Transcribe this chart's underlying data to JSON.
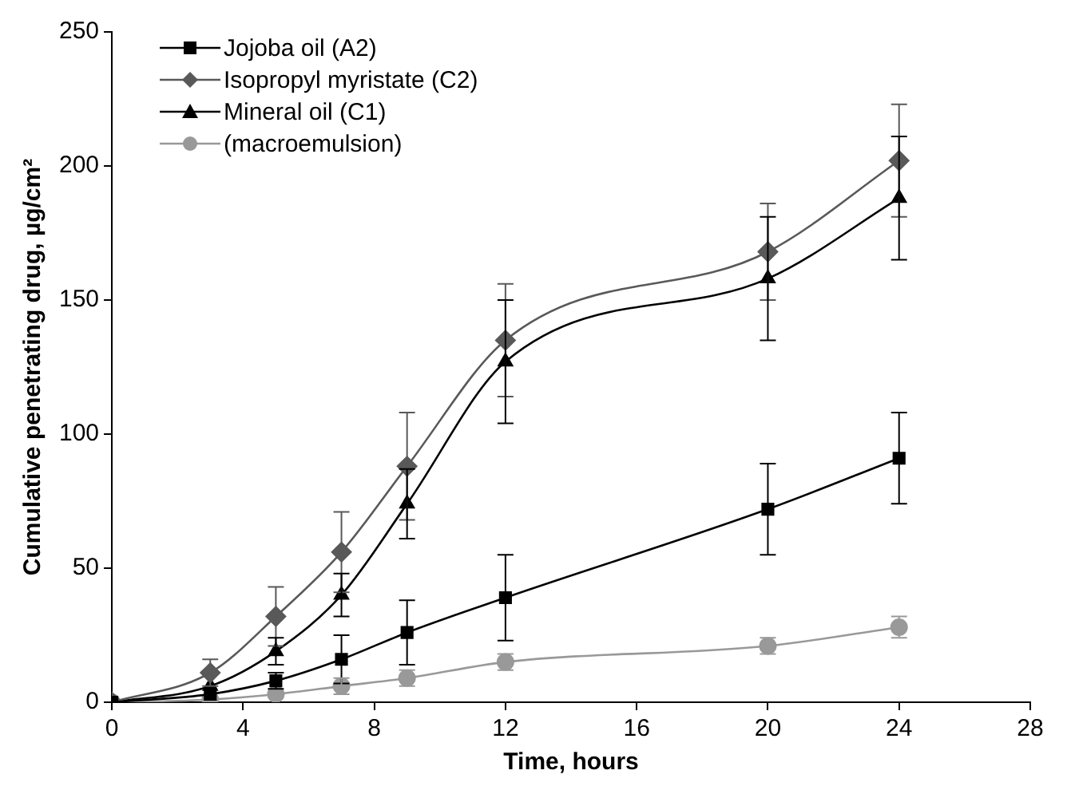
{
  "chart_data": {
    "type": "line",
    "xlabel": "Time, hours",
    "ylabel": "Cumulative penetrating drug, µg/cm²",
    "x": [
      0,
      3,
      5,
      7,
      9,
      12,
      20,
      24
    ],
    "xlim": [
      0,
      28
    ],
    "xticks": [
      0,
      4,
      8,
      12,
      16,
      20,
      24,
      28
    ],
    "ylim": [
      0,
      250
    ],
    "yticks": [
      0,
      50,
      100,
      150,
      200,
      250
    ],
    "grid": false,
    "legend": "top left",
    "series": [
      {
        "name": "Jojoba oil (A2)",
        "color": "#000000",
        "marker": "square",
        "values": [
          0,
          3,
          8,
          16,
          26,
          39,
          72,
          91
        ],
        "errors": [
          null,
          null,
          3,
          9,
          12,
          16,
          17,
          17
        ]
      },
      {
        "name": "Isopropyl myristate (C2)",
        "color": "#595959",
        "marker": "diamond",
        "values": [
          0,
          11,
          32,
          56,
          88,
          135,
          168,
          202
        ],
        "errors": [
          null,
          5,
          11,
          15,
          20,
          21,
          18,
          21
        ]
      },
      {
        "name": "Mineral oil (C1)",
        "color": "#000000",
        "marker": "triangle",
        "values": [
          0,
          6,
          19,
          40,
          74,
          127,
          158,
          188
        ],
        "errors": [
          null,
          null,
          5,
          8,
          13,
          23,
          23,
          23
        ]
      },
      {
        "name": "(macroemulsion)",
        "color": "#999999",
        "marker": "circle",
        "values": [
          0,
          1,
          3,
          6,
          9,
          15,
          21,
          28
        ],
        "errors": [
          null,
          null,
          null,
          3,
          3,
          3,
          3,
          4
        ]
      }
    ]
  }
}
